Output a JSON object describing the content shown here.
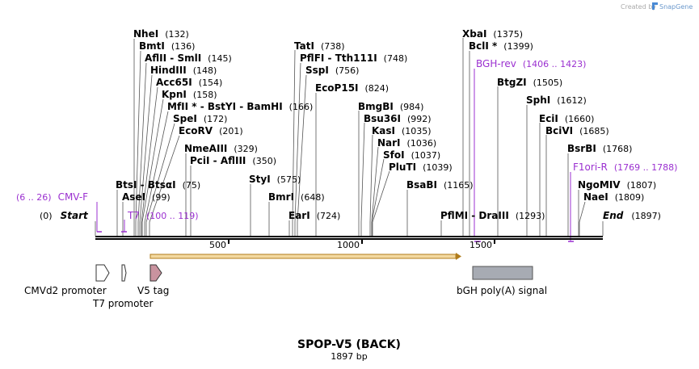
{
  "header": {
    "credit": "Created by",
    "brand": "SnapGene"
  },
  "map": {
    "title": "SPOP-V5 (BACK)",
    "length_label": "1897 bp",
    "sequence_length": 1897,
    "start_label": "Start",
    "start_pos": "(0)",
    "end_label": "End",
    "end_pos": "(1897)",
    "ticks": [
      "500",
      "1000",
      "1500"
    ]
  },
  "enzymes": [
    {
      "name": "NheI",
      "pos": "(132)"
    },
    {
      "name": "BmtI",
      "pos": "(136)"
    },
    {
      "name": "AflII - SmlI",
      "pos": "(145)"
    },
    {
      "name": "HindIII",
      "pos": "(148)"
    },
    {
      "name": "Acc65I",
      "pos": "(154)"
    },
    {
      "name": "KpnI",
      "pos": "(158)"
    },
    {
      "name": "MfII * - BstYI - BamHI",
      "pos": "(166)"
    },
    {
      "name": "SpeI",
      "pos": "(172)"
    },
    {
      "name": "EcoRV",
      "pos": "(201)"
    },
    {
      "name": "NmeAIII",
      "pos": "(329)"
    },
    {
      "name": "PciI - AflIII",
      "pos": "(350)"
    },
    {
      "name": "BtsI - BtsαI",
      "pos": "(75)"
    },
    {
      "name": "AseI",
      "pos": "(99)"
    },
    {
      "name": "TatI",
      "pos": "(738)"
    },
    {
      "name": "PflFI - Tth111I",
      "pos": "(748)"
    },
    {
      "name": "SspI",
      "pos": "(756)"
    },
    {
      "name": "EcoP15I",
      "pos": "(824)"
    },
    {
      "name": "StyI",
      "pos": "(575)"
    },
    {
      "name": "BmrI",
      "pos": "(648)"
    },
    {
      "name": "EarI",
      "pos": "(724)"
    },
    {
      "name": "BmgBI",
      "pos": "(984)"
    },
    {
      "name": "Bsu36I",
      "pos": "(992)"
    },
    {
      "name": "KasI",
      "pos": "(1035)"
    },
    {
      "name": "NarI",
      "pos": "(1036)"
    },
    {
      "name": "SfoI",
      "pos": "(1037)"
    },
    {
      "name": "PluTI",
      "pos": "(1039)"
    },
    {
      "name": "BsaBI",
      "pos": "(1165)"
    },
    {
      "name": "XbaI",
      "pos": "(1375)"
    },
    {
      "name": "BclI *",
      "pos": "(1399)"
    },
    {
      "name": "BtgZI",
      "pos": "(1505)"
    },
    {
      "name": "SphI",
      "pos": "(1612)"
    },
    {
      "name": "EciI",
      "pos": "(1660)"
    },
    {
      "name": "BciVI",
      "pos": "(1685)"
    },
    {
      "name": "BsrBI",
      "pos": "(1768)"
    },
    {
      "name": "NgoMIV",
      "pos": "(1807)"
    },
    {
      "name": "NaeI",
      "pos": "(1809)"
    },
    {
      "name": "PflMI - DraIII",
      "pos": "(1293)"
    }
  ],
  "primers": [
    {
      "name": "CMV-F",
      "range": "(6 .. 26)"
    },
    {
      "name": "T7",
      "range": "(100 .. 119)"
    },
    {
      "name": "BGH-rev",
      "range": "(1406 .. 1423)"
    },
    {
      "name": "F1ori-R",
      "range": "(1769 .. 1788)"
    }
  ],
  "features": [
    {
      "name": "CMVd2 promoter"
    },
    {
      "name": "T7 promoter"
    },
    {
      "name": "V5 tag"
    },
    {
      "name": "bGH poly(A) signal"
    }
  ],
  "colors": {
    "primer": "#9b30d0",
    "orf_fill": "#f3d9a0",
    "orf_stroke": "#b07c1c",
    "v5_fill": "#c9939f",
    "polya_fill": "#a7abb3",
    "brand": "#4a8ad4"
  }
}
